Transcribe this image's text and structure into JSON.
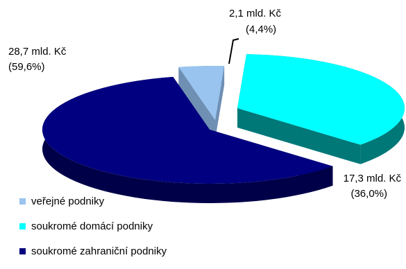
{
  "chart_data": {
    "type": "pie",
    "style": "3d-exploded",
    "categories": [
      "veřejné podniky",
      "soukromé domácí podniky",
      "soukromé zahraniční podniky"
    ],
    "values": [
      2.1,
      17.3,
      28.7
    ],
    "value_labels": [
      "2,1 mld. Kč",
      "17,3 mld. Kč",
      "28,7 mld. Kč"
    ],
    "percent_labels": [
      "(4,4%)",
      "(36,0%)",
      "(59,6%)"
    ],
    "legend_position": "bottom-left",
    "colors": {
      "top": [
        "#99c4f0",
        "#00ffff",
        "#000080"
      ],
      "side": [
        "#6f8fb3",
        "#007878",
        "#000049"
      ]
    }
  }
}
